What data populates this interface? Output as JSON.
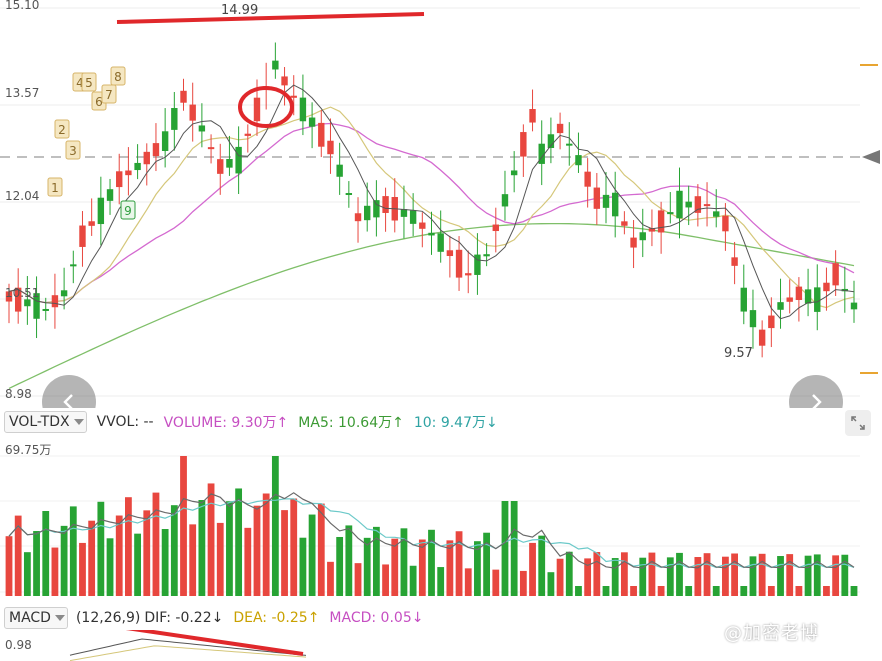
{
  "price_chart": {
    "y_labels": [
      "15.10",
      "13.57",
      "12.04",
      "10.51",
      "8.98"
    ],
    "high_label": "14.99",
    "low_label": "9.57",
    "markers": [
      "1",
      "2",
      "3",
      "4",
      "5",
      "6",
      "7",
      "8",
      "9"
    ]
  },
  "volume_bar": {
    "selector_label": "VOL-TDX",
    "vvol_text": "VVOL: --",
    "volume_text": "VOLUME: 9.30万↑",
    "ma5_text": "MA5: 10.64万↑",
    "ma10_text": "10: 9.47万↓",
    "max_label": "69.75万"
  },
  "macd_bar": {
    "selector_label": "MACD",
    "params_text": "(12,26,9)",
    "dif_text": "DIF: -0.22↓",
    "dea_text": "DEA: -0.25↑",
    "macd_text": "MACD: 0.05↓",
    "max_label": "0.98"
  },
  "watermark": "@加密老博",
  "colors": {
    "up": "#e8473f",
    "down": "#27a334",
    "ma5": "#555555",
    "ma10": "#d5c77a",
    "ma20": "#d46ad0",
    "ma60": "#7fbf69",
    "vma5": "#6a6a6a",
    "vma10": "#6cc9c9",
    "annotation": "#e0282b",
    "marker_bg": "#f5e7c2",
    "marker_border": "#d7b56a",
    "marker9": "#2f9e3f"
  },
  "icons": {
    "prev": "chevron-left-icon",
    "next": "chevron-right-icon",
    "expand": "expand-icon"
  }
}
